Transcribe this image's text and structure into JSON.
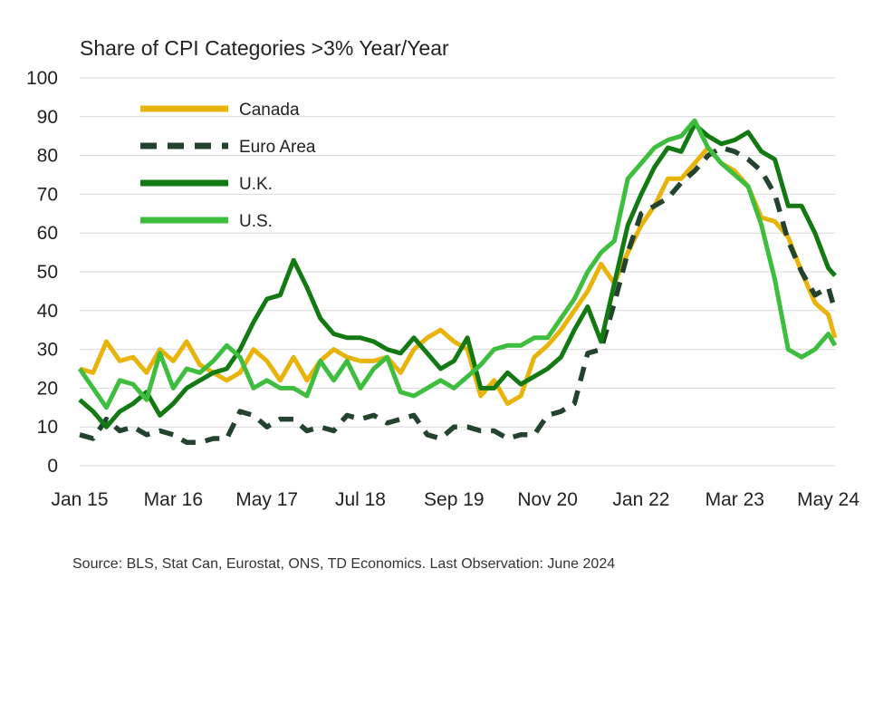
{
  "chart_data": {
    "type": "line",
    "title": "Share of CPI Categories >3% Year/Year",
    "source": "Source: BLS, Stat Can, Eurostat, ONS, TD Economics. Last Observation: June 2024",
    "ylim": [
      0,
      100
    ],
    "yticks": [
      0,
      10,
      20,
      30,
      40,
      50,
      60,
      70,
      80,
      90,
      100
    ],
    "xlim": [
      "2015-01",
      "2024-06"
    ],
    "xticks": [
      {
        "label": "Jan 15",
        "date": "2015-01"
      },
      {
        "label": "Mar 16",
        "date": "2016-03"
      },
      {
        "label": "May 17",
        "date": "2017-05"
      },
      {
        "label": "Jul 18",
        "date": "2018-07"
      },
      {
        "label": "Sep 19",
        "date": "2019-09"
      },
      {
        "label": "Nov 20",
        "date": "2020-11"
      },
      {
        "label": "Jan 22",
        "date": "2022-01"
      },
      {
        "label": "Mar 23",
        "date": "2023-03"
      },
      {
        "label": "May 24",
        "date": "2024-05"
      }
    ],
    "grid": true,
    "legend_position": "top-left",
    "series": [
      {
        "name": "Canada",
        "color": "#e8b40c",
        "style": "solid",
        "points": [
          [
            "2015-01",
            25
          ],
          [
            "2015-03",
            24
          ],
          [
            "2015-05",
            32
          ],
          [
            "2015-07",
            27
          ],
          [
            "2015-09",
            28
          ],
          [
            "2015-11",
            24
          ],
          [
            "2016-01",
            30
          ],
          [
            "2016-03",
            27
          ],
          [
            "2016-05",
            32
          ],
          [
            "2016-07",
            26
          ],
          [
            "2016-09",
            24
          ],
          [
            "2016-11",
            22
          ],
          [
            "2017-01",
            24
          ],
          [
            "2017-03",
            30
          ],
          [
            "2017-05",
            27
          ],
          [
            "2017-07",
            22
          ],
          [
            "2017-09",
            28
          ],
          [
            "2017-11",
            22
          ],
          [
            "2018-01",
            27
          ],
          [
            "2018-03",
            30
          ],
          [
            "2018-05",
            28
          ],
          [
            "2018-07",
            27
          ],
          [
            "2018-09",
            27
          ],
          [
            "2018-11",
            28
          ],
          [
            "2019-01",
            24
          ],
          [
            "2019-03",
            30
          ],
          [
            "2019-05",
            33
          ],
          [
            "2019-07",
            35
          ],
          [
            "2019-09",
            32
          ],
          [
            "2019-11",
            30
          ],
          [
            "2020-01",
            18
          ],
          [
            "2020-03",
            22
          ],
          [
            "2020-05",
            16
          ],
          [
            "2020-07",
            18
          ],
          [
            "2020-09",
            28
          ],
          [
            "2020-11",
            31
          ],
          [
            "2021-01",
            35
          ],
          [
            "2021-03",
            40
          ],
          [
            "2021-05",
            45
          ],
          [
            "2021-07",
            52
          ],
          [
            "2021-09",
            47
          ],
          [
            "2021-11",
            55
          ],
          [
            "2022-01",
            62
          ],
          [
            "2022-03",
            67
          ],
          [
            "2022-05",
            74
          ],
          [
            "2022-07",
            74
          ],
          [
            "2022-09",
            78
          ],
          [
            "2022-11",
            82
          ],
          [
            "2023-01",
            78
          ],
          [
            "2023-03",
            76
          ],
          [
            "2023-05",
            72
          ],
          [
            "2023-07",
            64
          ],
          [
            "2023-09",
            63
          ],
          [
            "2023-11",
            59
          ],
          [
            "2024-01",
            50
          ],
          [
            "2024-03",
            42
          ],
          [
            "2024-05",
            39
          ],
          [
            "2024-06",
            33
          ]
        ]
      },
      {
        "name": "Euro Area",
        "color": "#23432f",
        "style": "dashed",
        "points": [
          [
            "2015-01",
            8
          ],
          [
            "2015-03",
            7
          ],
          [
            "2015-05",
            12
          ],
          [
            "2015-07",
            9
          ],
          [
            "2015-09",
            10
          ],
          [
            "2015-11",
            8
          ],
          [
            "2016-01",
            9
          ],
          [
            "2016-03",
            8
          ],
          [
            "2016-05",
            6
          ],
          [
            "2016-07",
            6
          ],
          [
            "2016-09",
            7
          ],
          [
            "2016-11",
            7
          ],
          [
            "2017-01",
            14
          ],
          [
            "2017-03",
            13
          ],
          [
            "2017-05",
            10
          ],
          [
            "2017-07",
            12
          ],
          [
            "2017-09",
            12
          ],
          [
            "2017-11",
            9
          ],
          [
            "2018-01",
            10
          ],
          [
            "2018-03",
            9
          ],
          [
            "2018-05",
            13
          ],
          [
            "2018-07",
            12
          ],
          [
            "2018-09",
            13
          ],
          [
            "2018-11",
            11
          ],
          [
            "2019-01",
            12
          ],
          [
            "2019-03",
            13
          ],
          [
            "2019-05",
            8
          ],
          [
            "2019-07",
            7
          ],
          [
            "2019-09",
            10
          ],
          [
            "2019-11",
            10
          ],
          [
            "2020-01",
            9
          ],
          [
            "2020-03",
            9
          ],
          [
            "2020-05",
            7
          ],
          [
            "2020-07",
            8
          ],
          [
            "2020-09",
            8
          ],
          [
            "2020-11",
            13
          ],
          [
            "2021-01",
            14
          ],
          [
            "2021-03",
            16
          ],
          [
            "2021-05",
            29
          ],
          [
            "2021-07",
            30
          ],
          [
            "2021-09",
            42
          ],
          [
            "2021-11",
            55
          ],
          [
            "2022-01",
            65
          ],
          [
            "2022-03",
            67
          ],
          [
            "2022-05",
            69
          ],
          [
            "2022-07",
            73
          ],
          [
            "2022-09",
            76
          ],
          [
            "2022-11",
            80
          ],
          [
            "2023-01",
            82
          ],
          [
            "2023-03",
            81
          ],
          [
            "2023-05",
            79
          ],
          [
            "2023-07",
            76
          ],
          [
            "2023-09",
            70
          ],
          [
            "2023-11",
            58
          ],
          [
            "2024-01",
            50
          ],
          [
            "2024-03",
            44
          ],
          [
            "2024-05",
            46
          ],
          [
            "2024-06",
            40
          ]
        ]
      },
      {
        "name": "U.K.",
        "color": "#137a13",
        "style": "solid",
        "points": [
          [
            "2015-01",
            17
          ],
          [
            "2015-03",
            14
          ],
          [
            "2015-05",
            10
          ],
          [
            "2015-07",
            14
          ],
          [
            "2015-09",
            16
          ],
          [
            "2015-11",
            19
          ],
          [
            "2016-01",
            13
          ],
          [
            "2016-03",
            16
          ],
          [
            "2016-05",
            20
          ],
          [
            "2016-07",
            22
          ],
          [
            "2016-09",
            24
          ],
          [
            "2016-11",
            25
          ],
          [
            "2017-01",
            30
          ],
          [
            "2017-03",
            37
          ],
          [
            "2017-05",
            43
          ],
          [
            "2017-07",
            44
          ],
          [
            "2017-09",
            53
          ],
          [
            "2017-11",
            46
          ],
          [
            "2018-01",
            38
          ],
          [
            "2018-03",
            34
          ],
          [
            "2018-05",
            33
          ],
          [
            "2018-07",
            33
          ],
          [
            "2018-09",
            32
          ],
          [
            "2018-11",
            30
          ],
          [
            "2019-01",
            29
          ],
          [
            "2019-03",
            33
          ],
          [
            "2019-05",
            29
          ],
          [
            "2019-07",
            25
          ],
          [
            "2019-09",
            27
          ],
          [
            "2019-11",
            33
          ],
          [
            "2020-01",
            20
          ],
          [
            "2020-03",
            20
          ],
          [
            "2020-05",
            24
          ],
          [
            "2020-07",
            21
          ],
          [
            "2020-09",
            23
          ],
          [
            "2020-11",
            25
          ],
          [
            "2021-01",
            28
          ],
          [
            "2021-03",
            35
          ],
          [
            "2021-05",
            41
          ],
          [
            "2021-07",
            32
          ],
          [
            "2021-09",
            47
          ],
          [
            "2021-11",
            62
          ],
          [
            "2022-01",
            70
          ],
          [
            "2022-03",
            77
          ],
          [
            "2022-05",
            82
          ],
          [
            "2022-07",
            81
          ],
          [
            "2022-09",
            88
          ],
          [
            "2022-11",
            85
          ],
          [
            "2023-01",
            83
          ],
          [
            "2023-03",
            84
          ],
          [
            "2023-05",
            86
          ],
          [
            "2023-07",
            81
          ],
          [
            "2023-09",
            79
          ],
          [
            "2023-11",
            67
          ],
          [
            "2024-01",
            67
          ],
          [
            "2024-03",
            60
          ],
          [
            "2024-05",
            51
          ],
          [
            "2024-06",
            49
          ]
        ]
      },
      {
        "name": "U.S.",
        "color": "#3ebd3e",
        "style": "solid",
        "points": [
          [
            "2015-01",
            25
          ],
          [
            "2015-03",
            20
          ],
          [
            "2015-05",
            15
          ],
          [
            "2015-07",
            22
          ],
          [
            "2015-09",
            21
          ],
          [
            "2015-11",
            17
          ],
          [
            "2016-01",
            29
          ],
          [
            "2016-03",
            20
          ],
          [
            "2016-05",
            25
          ],
          [
            "2016-07",
            24
          ],
          [
            "2016-09",
            27
          ],
          [
            "2016-11",
            31
          ],
          [
            "2017-01",
            28
          ],
          [
            "2017-03",
            20
          ],
          [
            "2017-05",
            22
          ],
          [
            "2017-07",
            20
          ],
          [
            "2017-09",
            20
          ],
          [
            "2017-11",
            18
          ],
          [
            "2018-01",
            27
          ],
          [
            "2018-03",
            22
          ],
          [
            "2018-05",
            27
          ],
          [
            "2018-07",
            20
          ],
          [
            "2018-09",
            25
          ],
          [
            "2018-11",
            28
          ],
          [
            "2019-01",
            19
          ],
          [
            "2019-03",
            18
          ],
          [
            "2019-05",
            20
          ],
          [
            "2019-07",
            22
          ],
          [
            "2019-09",
            20
          ],
          [
            "2019-11",
            23
          ],
          [
            "2020-01",
            26
          ],
          [
            "2020-03",
            30
          ],
          [
            "2020-05",
            31
          ],
          [
            "2020-07",
            31
          ],
          [
            "2020-09",
            33
          ],
          [
            "2020-11",
            33
          ],
          [
            "2021-01",
            38
          ],
          [
            "2021-03",
            43
          ],
          [
            "2021-05",
            50
          ],
          [
            "2021-07",
            55
          ],
          [
            "2021-09",
            58
          ],
          [
            "2021-11",
            74
          ],
          [
            "2022-01",
            78
          ],
          [
            "2022-03",
            82
          ],
          [
            "2022-05",
            84
          ],
          [
            "2022-07",
            85
          ],
          [
            "2022-09",
            89
          ],
          [
            "2022-11",
            82
          ],
          [
            "2023-01",
            78
          ],
          [
            "2023-03",
            75
          ],
          [
            "2023-05",
            72
          ],
          [
            "2023-07",
            62
          ],
          [
            "2023-09",
            48
          ],
          [
            "2023-11",
            30
          ],
          [
            "2024-01",
            28
          ],
          [
            "2024-03",
            30
          ],
          [
            "2024-05",
            34
          ],
          [
            "2024-06",
            31
          ]
        ]
      }
    ]
  }
}
